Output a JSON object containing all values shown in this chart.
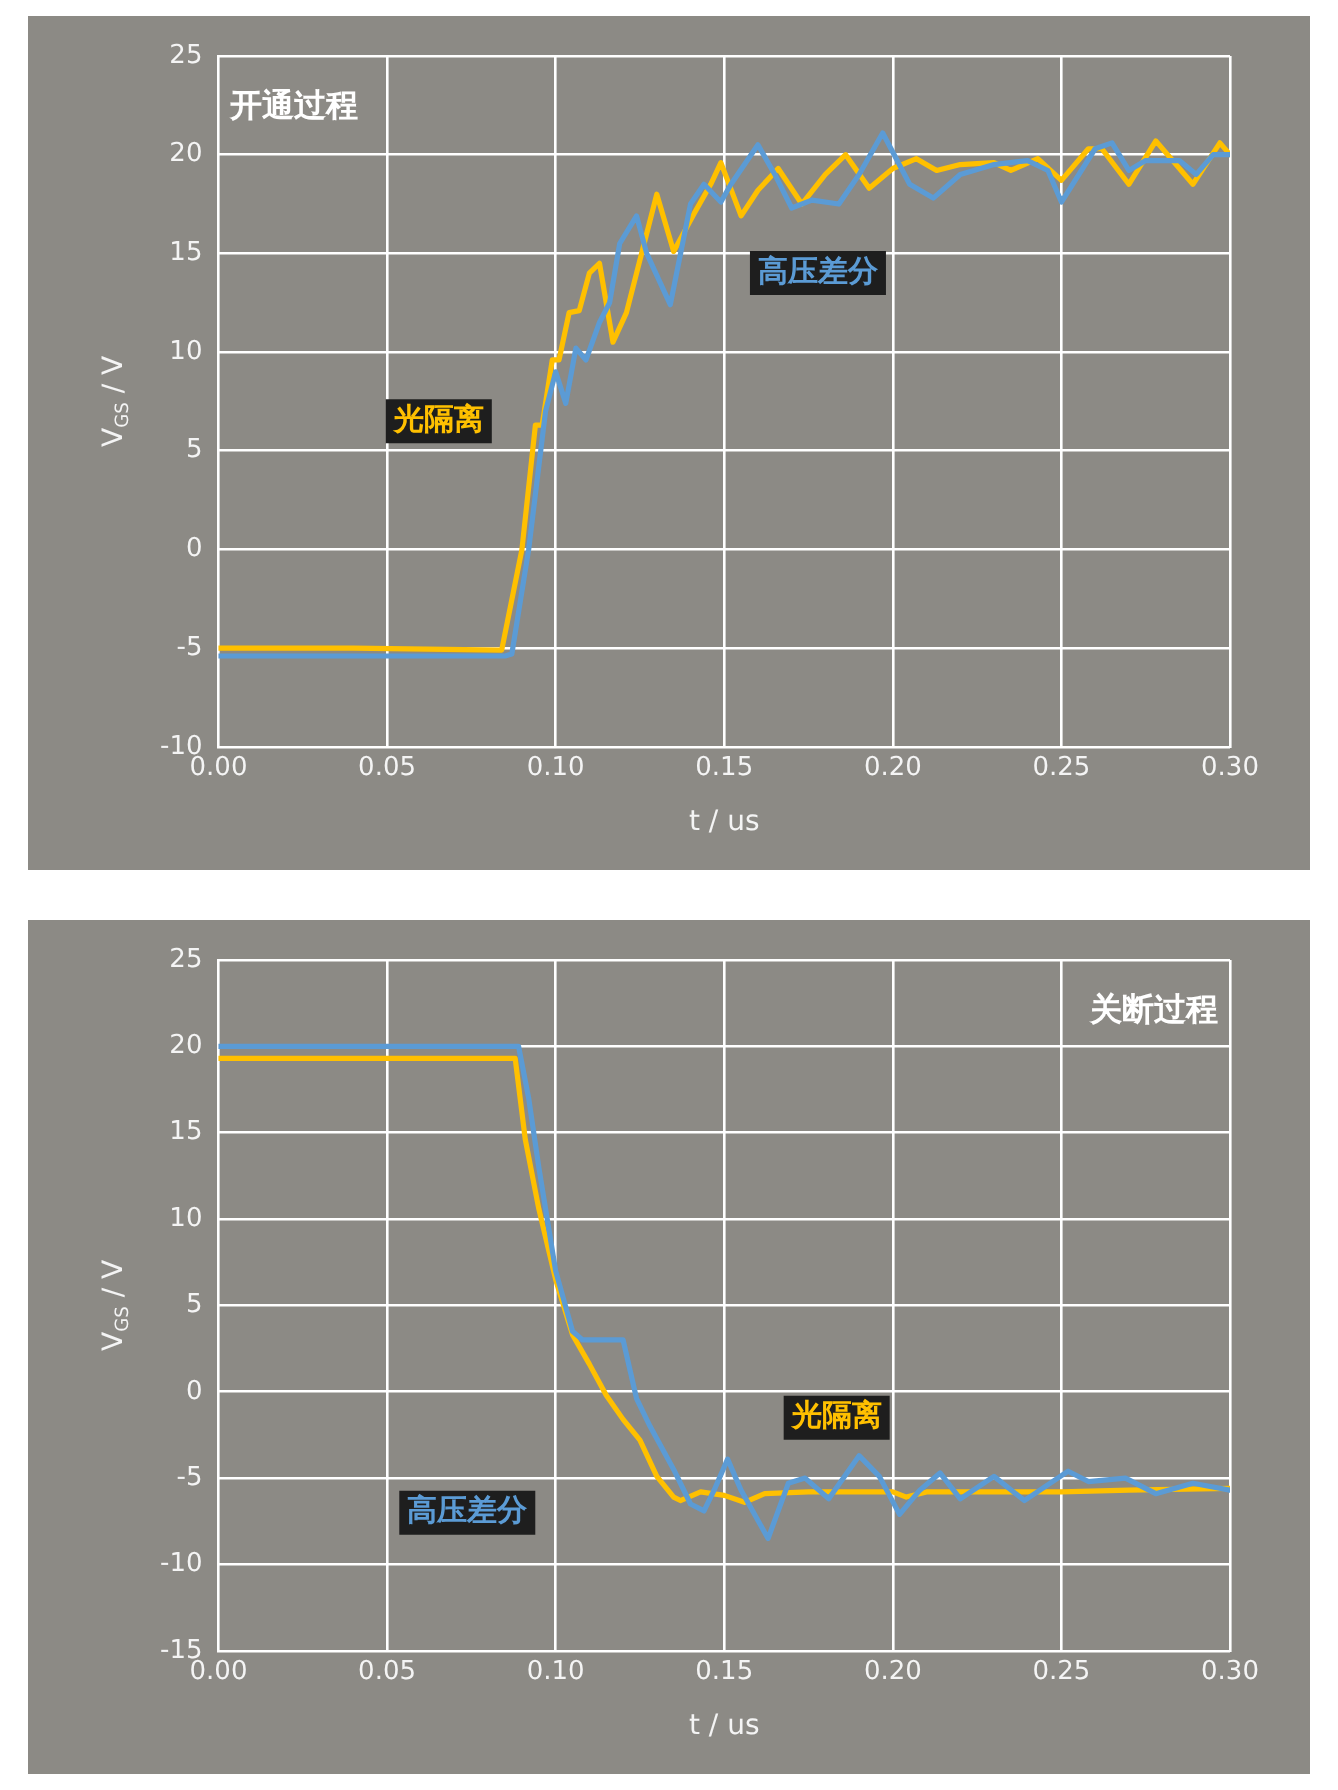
{
  "chart_data": [
    {
      "type": "line",
      "title": "开通过程",
      "xlabel": "t / us",
      "ylabel": "V$_{GS}$ / V",
      "xlim": [
        0,
        0.3
      ],
      "ylim": [
        -10,
        25
      ],
      "xticks": [
        {
          "value": 0,
          "label": "0.00"
        },
        {
          "value": 0.05,
          "label": "0.05"
        },
        {
          "value": 0.1,
          "label": "0.10"
        },
        {
          "value": 0.15,
          "label": "0.15"
        },
        {
          "value": 0.2,
          "label": "0.20"
        },
        {
          "value": 0.25,
          "label": "0.25"
        },
        {
          "value": 0.3,
          "label": "0.30"
        }
      ],
      "yticks": [
        -10,
        -5,
        0,
        5,
        10,
        15,
        20,
        25
      ],
      "grid": true,
      "legend": false,
      "marker": "none",
      "line_style": "solid",
      "series": [
        {
          "name": "高压差分",
          "color": "#5b9bd5",
          "x": [
            0,
            0.04,
            0.085,
            0.087,
            0.092,
            0.097,
            0.1,
            0.103,
            0.106,
            0.109,
            0.113,
            0.116,
            0.119,
            0.124,
            0.127,
            0.134,
            0.14,
            0.144,
            0.149,
            0.152,
            0.16,
            0.165,
            0.17,
            0.176,
            0.184,
            0.19,
            0.197,
            0.205,
            0.212,
            0.22,
            0.23,
            0.24,
            0.246,
            0.25,
            0.26,
            0.265,
            0.27,
            0.275,
            0.285,
            0.29,
            0.295,
            0.3
          ],
          "values": [
            -5.4,
            -5.4,
            -5.4,
            -5.3,
            0,
            7,
            9,
            7.4,
            10.2,
            9.6,
            11.5,
            12.5,
            15.5,
            16.9,
            15,
            12.4,
            17.5,
            18.5,
            17.6,
            18.5,
            20.5,
            19,
            17.3,
            17.7,
            17.5,
            19,
            21.1,
            18.5,
            17.8,
            19,
            19.5,
            19.7,
            19.2,
            17.6,
            20.3,
            20.6,
            19.2,
            19.7,
            19.7,
            19,
            20,
            20
          ]
        },
        {
          "name": "光隔离",
          "color": "#ffc000",
          "x": [
            0,
            0.04,
            0.084,
            0.09,
            0.094,
            0.096,
            0.099,
            0.101,
            0.104,
            0.107,
            0.11,
            0.113,
            0.117,
            0.121,
            0.124,
            0.13,
            0.135,
            0.141,
            0.146,
            0.149,
            0.155,
            0.16,
            0.166,
            0.173,
            0.18,
            0.186,
            0.193,
            0.2,
            0.207,
            0.213,
            0.22,
            0.23,
            0.235,
            0.243,
            0.25,
            0.258,
            0.262,
            0.27,
            0.278,
            0.289,
            0.297,
            0.3
          ],
          "values": [
            -5,
            -5,
            -5.1,
            0,
            6.3,
            6.3,
            9.6,
            9.6,
            12,
            12.1,
            14,
            14.5,
            10.5,
            12,
            14,
            18,
            15.1,
            17,
            18.5,
            19.6,
            16.9,
            18.2,
            19.3,
            17.5,
            19,
            20,
            18.3,
            19.3,
            19.8,
            19.2,
            19.5,
            19.6,
            19.2,
            19.8,
            18.7,
            20.3,
            20.3,
            18.5,
            20.7,
            18.5,
            20.6,
            20
          ]
        }
      ]
    },
    {
      "type": "line",
      "title": "关断过程",
      "xlabel": "t / us",
      "ylabel": "V$_{GS}$ / V",
      "xlim": [
        0,
        0.3
      ],
      "ylim": [
        -15,
        25
      ],
      "xticks": [
        {
          "value": 0,
          "label": "0.00"
        },
        {
          "value": 0.05,
          "label": "0.05"
        },
        {
          "value": 0.1,
          "label": "0.10"
        },
        {
          "value": 0.15,
          "label": "0.15"
        },
        {
          "value": 0.2,
          "label": "0.20"
        },
        {
          "value": 0.25,
          "label": "0.25"
        },
        {
          "value": 0.3,
          "label": "0.30"
        }
      ],
      "yticks": [
        -15,
        -10,
        -5,
        0,
        5,
        10,
        15,
        20,
        25
      ],
      "grid": true,
      "legend": false,
      "marker": "none",
      "line_style": "solid",
      "series": [
        {
          "name": "高压差分",
          "color": "#5b9bd5",
          "x": [
            0,
            0.04,
            0.089,
            0.092,
            0.095,
            0.1,
            0.105,
            0.108,
            0.12,
            0.124,
            0.128,
            0.135,
            0.14,
            0.144,
            0.147,
            0.151,
            0.155,
            0.163,
            0.169,
            0.174,
            0.181,
            0.19,
            0.196,
            0.202,
            0.208,
            0.214,
            0.22,
            0.23,
            0.239,
            0.252,
            0.258,
            0.269,
            0.278,
            0.289,
            0.3
          ],
          "values": [
            20,
            20,
            20,
            17,
            13,
            7,
            3.5,
            3,
            3,
            -0.4,
            -2,
            -4.5,
            -6.5,
            -6.9,
            -5.7,
            -3.9,
            -5.7,
            -8.5,
            -5.3,
            -5,
            -6.2,
            -3.7,
            -4.9,
            -7.1,
            -5.7,
            -4.7,
            -6.2,
            -4.9,
            -6.3,
            -4.6,
            -5.2,
            -5,
            -5.9,
            -5.3,
            -5.7
          ]
        },
        {
          "name": "光隔离",
          "color": "#ffc000",
          "x": [
            0,
            0.04,
            0.088,
            0.091,
            0.095,
            0.1,
            0.105,
            0.11,
            0.115,
            0.12,
            0.125,
            0.13,
            0.135,
            0.137,
            0.143,
            0.15,
            0.156,
            0.162,
            0.175,
            0.2,
            0.204,
            0.21,
            0.25,
            0.27,
            0.3
          ],
          "values": [
            19.3,
            19.3,
            19.3,
            14.6,
            10.6,
            6.5,
            3.3,
            1.6,
            -0.2,
            -1.6,
            -2.8,
            -4.9,
            -6.1,
            -6.3,
            -5.8,
            -6,
            -6.4,
            -5.9,
            -5.8,
            -5.8,
            -6.1,
            -5.8,
            -5.8,
            -5.7,
            -5.6
          ]
        }
      ]
    }
  ]
}
